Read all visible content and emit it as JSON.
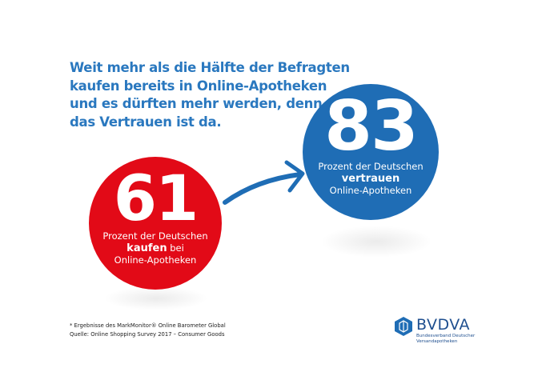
{
  "headline": {
    "lines": [
      "Weit mehr als die Hälfte der Befragten",
      "kaufen bereits in Online-Apotheken",
      "und es dürften mehr werden, denn",
      "das Vertrauen ist da."
    ]
  },
  "stat_buy": {
    "value": "61",
    "line1": "Prozent der Deutschen",
    "bold": "kaufen",
    "after_bold": " bei",
    "line3": "Online-Apotheken",
    "color": "#e20a17"
  },
  "stat_trust": {
    "value": "83",
    "line1": "Prozent der Deutschen",
    "bold": "vertrauen",
    "line3": "Online-Apotheken",
    "color": "#1f6db5"
  },
  "footnote": {
    "line1": "* Ergebnisse des MarkMonitor® Online Barometer Global",
    "line2": "Quelle: Online Shopping Survey 2017 – Consumer Goods"
  },
  "logo": {
    "name": "BVDVA",
    "sub1": "Bundesverband Deutscher",
    "sub2": "Versandapotheken",
    "icon": "hexagon-logo-icon"
  },
  "arrow": {
    "icon": "arrow-right-icon",
    "color": "#1f6db5"
  }
}
